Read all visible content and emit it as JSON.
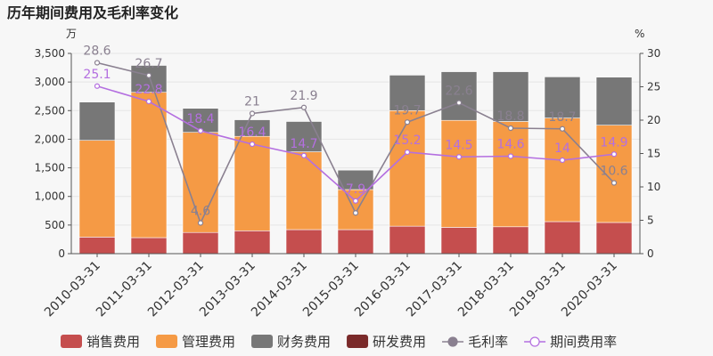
{
  "chart_data": {
    "type": "bar",
    "title": "历年期间费用及毛利率变化",
    "left_unit": "万",
    "right_unit": "%",
    "categories": [
      "2010-03-31",
      "2011-03-31",
      "2012-03-31",
      "2013-03-31",
      "2014-03-31",
      "2015-03-31",
      "2016-03-31",
      "2017-03-31",
      "2018-03-31",
      "2019-03-31",
      "2020-03-31"
    ],
    "ylim": [
      0,
      3500
    ],
    "y_ticks": [
      "0",
      "500",
      "1,000",
      "1,500",
      "2,000",
      "2,500",
      "3,000",
      "3,500"
    ],
    "y2lim": [
      0,
      30
    ],
    "y2_ticks": [
      "0",
      "5",
      "10",
      "15",
      "20",
      "25",
      "30"
    ],
    "series": [
      {
        "name": "销售费用",
        "kind": "bar",
        "color": "#c54e4e",
        "values": [
          290,
          280,
          370,
          400,
          420,
          420,
          480,
          460,
          470,
          560,
          545
        ]
      },
      {
        "name": "管理费用",
        "kind": "bar",
        "color": "#f59a45",
        "values": [
          1690,
          2540,
          1750,
          1650,
          1360,
          700,
          2020,
          1870,
          1840,
          1810,
          1700
        ]
      },
      {
        "name": "财务费用",
        "kind": "bar",
        "color": "#777777",
        "values": [
          670,
          470,
          420,
          290,
          530,
          340,
          620,
          850,
          870,
          720,
          840
        ]
      },
      {
        "name": "研发费用",
        "kind": "bar",
        "color": "#7a2a2a",
        "values": [
          0,
          0,
          0,
          0,
          0,
          0,
          0,
          0,
          0,
          0,
          0
        ]
      },
      {
        "name": "毛利率",
        "kind": "line",
        "color": "#8a8090",
        "values": [
          28.6,
          26.7,
          4.6,
          21,
          21.9,
          6.1,
          19.7,
          22.6,
          18.8,
          18.7,
          10.6
        ],
        "labels": [
          "28.6",
          "26.7",
          "4.6",
          "21",
          "21.9",
          "",
          "19.7",
          "22.6",
          "18.8",
          "18.7",
          "10.6"
        ]
      },
      {
        "name": "期间费用率",
        "kind": "line",
        "color": "#b46fe0",
        "values": [
          25.1,
          22.8,
          18.4,
          16.4,
          14.7,
          7.9,
          15.2,
          14.5,
          14.6,
          14,
          14.9
        ],
        "labels": [
          "25.1",
          "22.8",
          "18.4",
          "16.4",
          "14.7",
          "7.9",
          "15.2",
          "14.5",
          "14.6",
          "14",
          "14.9"
        ]
      }
    ],
    "legend": {
      "placement": "bottom"
    }
  }
}
